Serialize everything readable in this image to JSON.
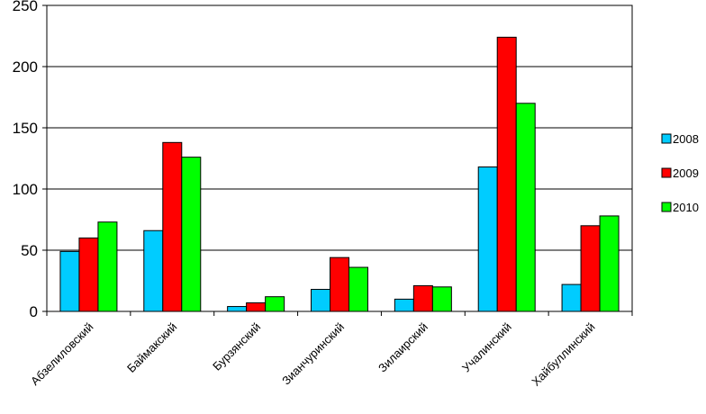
{
  "chart_data": {
    "type": "bar",
    "title": "",
    "xlabel": "",
    "ylabel": "",
    "ylim": [
      0,
      250
    ],
    "yticks": [
      "0",
      "50",
      "100",
      "150",
      "200",
      "250"
    ],
    "grid": true,
    "legend_position": "right",
    "categories": [
      "Абзелиловский",
      "Баймакский",
      "Бурзянский",
      "Зианчуринский",
      "Зилаирский",
      "Учалинский",
      "Хайбуллинский"
    ],
    "series": [
      {
        "name": "2008",
        "color": "#00ccff",
        "values": [
          49,
          66,
          4,
          18,
          10,
          118,
          22
        ]
      },
      {
        "name": "2009",
        "color": "#ff0000",
        "values": [
          60,
          138,
          7,
          44,
          21,
          224,
          70
        ]
      },
      {
        "name": "2010",
        "color": "#00ff00",
        "values": [
          73,
          126,
          12,
          36,
          20,
          170,
          78
        ]
      }
    ]
  }
}
